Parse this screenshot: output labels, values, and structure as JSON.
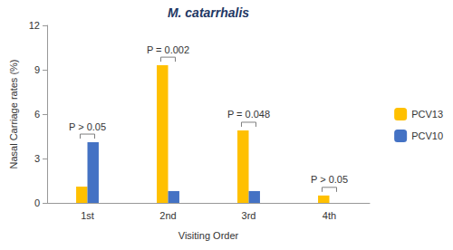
{
  "chart_data": {
    "type": "bar",
    "title": "M. catarrhalis",
    "x_label": "Visiting Order",
    "y_label": "Nasal Carriage rates (%)",
    "categories": [
      "1st",
      "2nd",
      "3rd",
      "4th"
    ],
    "series": [
      {
        "name": "PCV13",
        "color": "#FFC000",
        "values": [
          1.1,
          9.3,
          4.9,
          0.5
        ]
      },
      {
        "name": "PCV10",
        "color": "#4472C4",
        "values": [
          4.1,
          0.8,
          0.8,
          0
        ]
      }
    ],
    "ylim": [
      0,
      12
    ],
    "yticks": [
      0,
      3,
      6,
      9,
      12
    ],
    "grid": false,
    "legend": "right",
    "annotations": [
      "P > 0.05",
      "P = 0.002",
      "P = 0.048",
      "P > 0.05"
    ]
  }
}
